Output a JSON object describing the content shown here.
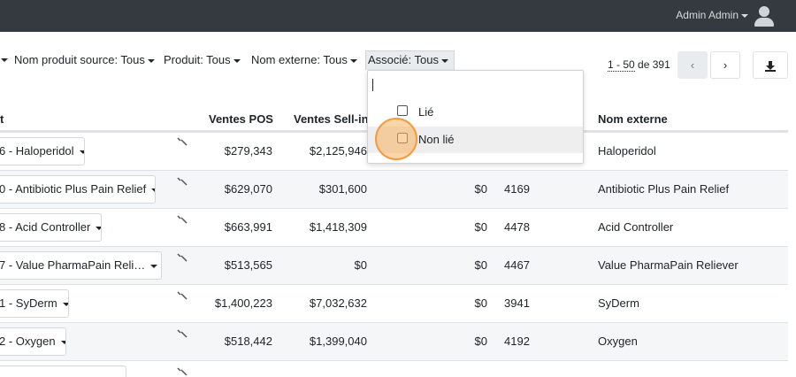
{
  "header": {
    "user_name": "Admin Admin",
    "icons": {
      "avatar": "user-icon",
      "user_caret": "chevron-down-icon"
    }
  },
  "filters": {
    "source_product": "Nom produit source: Tous",
    "product": "Produit: Tous",
    "external_name": "Nom externe: Tous",
    "associated": "Associé: Tous"
  },
  "pagination": {
    "range": "1 - 50",
    "of_label": "de",
    "total": "391",
    "prev_icon": "chevron-left-icon",
    "next_icon": "chevron-right-icon",
    "download_icon": "download-icon"
  },
  "dropdown": {
    "search_value": "",
    "options": [
      {
        "label": "Lié",
        "checked": false
      },
      {
        "label": "Non lié",
        "checked": false
      }
    ]
  },
  "table": {
    "columns": {
      "product": "t",
      "pos_sales": "Ventes POS",
      "sellin_sales": "Ventes Sell-in",
      "external_name": "Nom externe"
    },
    "rows": [
      {
        "product": "6 - Haloperidol",
        "pos": "$279,343",
        "sellin": "$2,125,946",
        "amount": "",
        "code": "",
        "external": "Haloperidol"
      },
      {
        "product": "0 - Antibiotic Plus Pain Relief",
        "pos": "$629,070",
        "sellin": "$301,600",
        "amount": "$0",
        "code": "4169",
        "external": "Antibiotic Plus Pain Relief"
      },
      {
        "product": "8 - Acid Controller",
        "pos": "$663,991",
        "sellin": "$1,418,309",
        "amount": "$0",
        "code": "4478",
        "external": "Acid Controller"
      },
      {
        "product": "7 - Value PharmaPain Reli…",
        "pos": "$513,565",
        "sellin": "$0",
        "amount": "$0",
        "code": "4467",
        "external": "Value PharmaPain Reliever"
      },
      {
        "product": "1 - SyDerm",
        "pos": "$1,400,223",
        "sellin": "$7,032,632",
        "amount": "$0",
        "code": "3941",
        "external": "SyDerm"
      },
      {
        "product": "2 - Oxygen",
        "pos": "$518,442",
        "sellin": "$1,399,040",
        "amount": "$0",
        "code": "4192",
        "external": "Oxygen"
      }
    ]
  },
  "colors": {
    "topbar": "#343a40",
    "highlight": "#f39b3f",
    "stripe": "#f5f6f8"
  }
}
